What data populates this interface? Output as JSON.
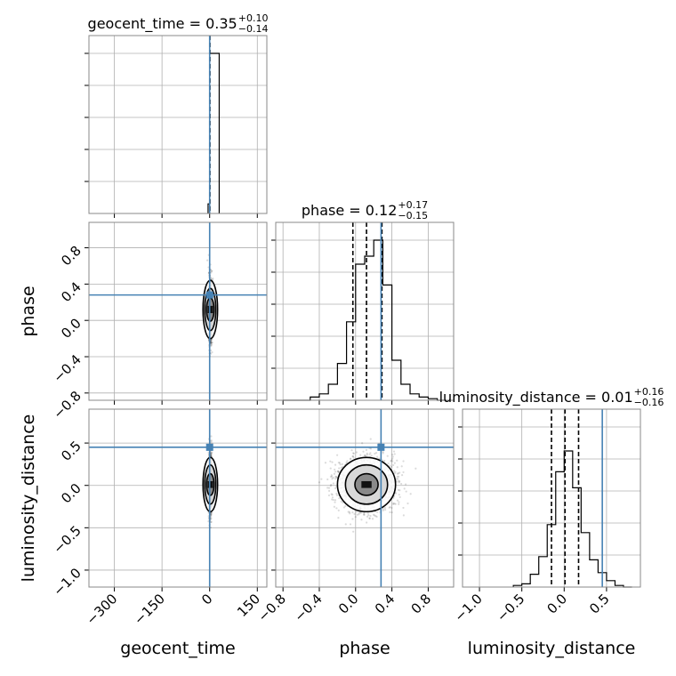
{
  "chart_data": {
    "type": "corner",
    "parameters": [
      "geocent_time",
      "phase",
      "luminosity_distance"
    ],
    "truth_color": "#4682b4",
    "hist_color": "#000000",
    "contour_levels": 3,
    "grid": true,
    "titles": [
      {
        "param": "geocent_time",
        "main": "geocent_time = 0.35",
        "sup": "+0.10",
        "sub": "−0.14"
      },
      {
        "param": "phase",
        "main": "phase = 0.12",
        "sup": "+0.17",
        "sub": "−0.15"
      },
      {
        "param": "luminosity_distance",
        "main": "luminosity_distance = 0.01",
        "sup": "+0.16",
        "sub": "−0.16"
      }
    ],
    "axes": {
      "geocent_time": {
        "label": "geocent_time",
        "range": [
          -380,
          180
        ],
        "ticks": [
          -300,
          -150,
          0,
          150
        ],
        "tick_labels": [
          "−300",
          "−150",
          "0",
          "150"
        ]
      },
      "phase": {
        "label": "phase",
        "range": [
          -0.88,
          1.08
        ],
        "ticks": [
          -0.8,
          -0.4,
          0.0,
          0.4,
          0.8
        ],
        "tick_labels": [
          "−0.8",
          "−0.4",
          "0.0",
          "0.4",
          "0.8"
        ]
      },
      "luminosity_distance": {
        "label": "luminosity_distance",
        "range": [
          -1.2,
          0.9
        ],
        "ticks": [
          -1.0,
          -0.5,
          0.0,
          0.5
        ],
        "tick_labels": [
          "−1.0",
          "−0.5",
          "0.0",
          "0.5"
        ]
      }
    },
    "truths": {
      "geocent_time": 0.0,
      "phase": 0.28,
      "luminosity_distance": 0.45
    },
    "quantiles": {
      "geocent_time": [
        0.21,
        0.35,
        0.45
      ],
      "phase": [
        -0.03,
        0.12,
        0.29
      ],
      "luminosity_distance": [
        -0.15,
        0.01,
        0.17
      ]
    },
    "histograms": {
      "geocent_time": {
        "bin_edges": [
          -5,
          0,
          30
        ],
        "counts": [
          0.06,
          1.0
        ]
      },
      "phase": {
        "bin_edges": [
          -0.8,
          -0.7,
          -0.6,
          -0.5,
          -0.4,
          -0.3,
          -0.2,
          -0.1,
          0.0,
          0.1,
          0.2,
          0.3,
          0.4,
          0.5,
          0.6,
          0.7,
          0.8,
          0.9,
          1.0
        ],
        "counts": [
          0.0,
          0.0,
          0.0,
          0.02,
          0.04,
          0.1,
          0.23,
          0.49,
          0.85,
          0.9,
          1.0,
          0.72,
          0.25,
          0.1,
          0.04,
          0.02,
          0.01,
          0.0
        ]
      },
      "luminosity_distance": {
        "bin_edges": [
          -0.6,
          -0.5,
          -0.4,
          -0.3,
          -0.2,
          -0.1,
          0.0,
          0.1,
          0.2,
          0.3,
          0.4,
          0.5,
          0.6,
          0.7,
          0.8
        ],
        "counts": [
          0.01,
          0.02,
          0.08,
          0.19,
          0.39,
          0.72,
          0.85,
          0.62,
          0.34,
          0.17,
          0.09,
          0.04,
          0.01,
          0.0
        ]
      }
    },
    "samples_2d": {
      "phase_vs_geocent_time": {
        "x_center": 2,
        "x_sigma": 3,
        "y_center": 0.12,
        "y_sigma": 0.16
      },
      "luminosity_distance_vs_geocent_time": {
        "x_center": 2,
        "x_sigma": 3,
        "y_center": 0.01,
        "y_sigma": 0.16
      },
      "luminosity_distance_vs_phase": {
        "x_center": 0.12,
        "x_sigma": 0.16,
        "y_center": 0.01,
        "y_sigma": 0.16
      }
    }
  }
}
